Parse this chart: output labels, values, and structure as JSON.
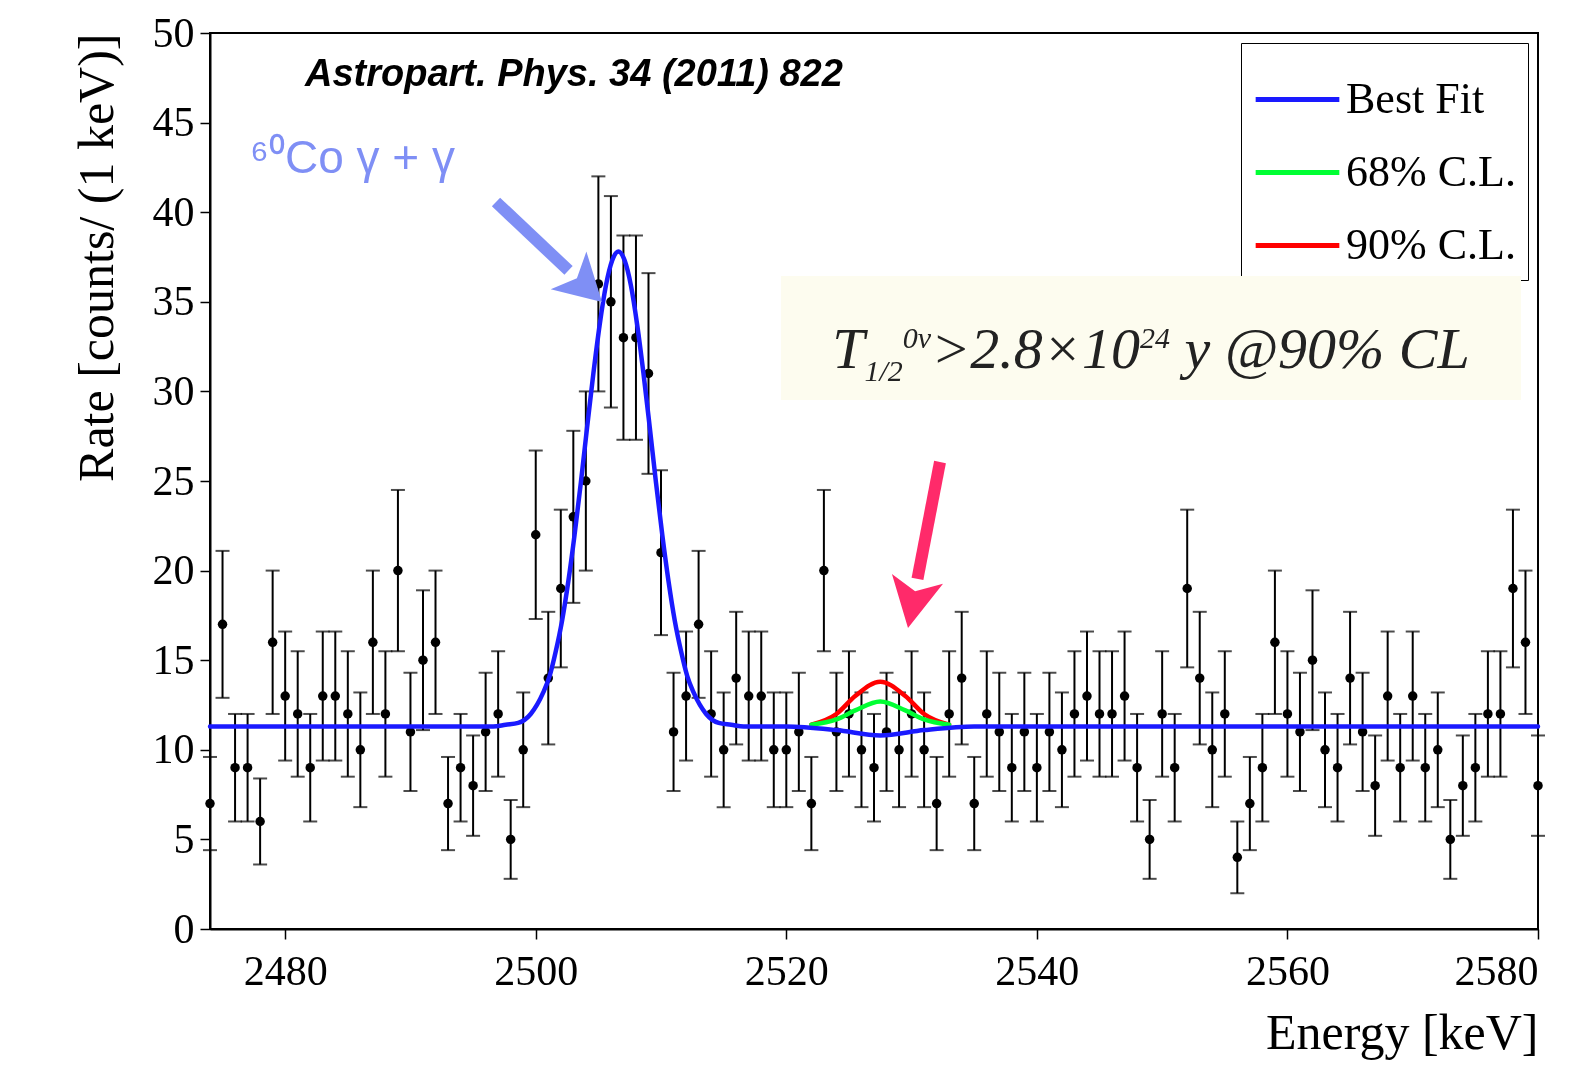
{
  "chart_data": {
    "type": "scatter",
    "xlabel": "Energy [keV]",
    "ylabel": "Rate [counts/ (1 keV)]",
    "xlim": [
      2474,
      2580
    ],
    "xticks": [
      2480,
      2500,
      2520,
      2540,
      2560,
      2580
    ],
    "ylim": [
      0,
      50
    ],
    "yticks": [
      0,
      5,
      10,
      15,
      20,
      25,
      30,
      35,
      40,
      45,
      50
    ],
    "legend": "top right",
    "annotations": [
      "Astropart. Phys. 34 (2011) 822",
      "⁶⁰Co γ + γ",
      "T$_{1/2}$$^{0ν}$>2.8×10$^{24}$ y  @90% CL"
    ],
    "series": [
      {
        "name": "Best Fit",
        "type": "line",
        "color": "#1a1aff",
        "x": [
          2474,
          2496.6,
          2497.6,
          2498.6,
          2499.6,
          2500.6,
          2501.1,
          2501.6,
          2502.1,
          2502.6,
          2503.1,
          2503.6,
          2504.1,
          2504.6,
          2505.1,
          2505.6,
          2506.1,
          2506.6,
          2507.1,
          2507.6,
          2508.1,
          2508.6,
          2509.1,
          2509.6,
          2510.1,
          2510.6,
          2511.1,
          2511.6,
          2512.1,
          2512.6,
          2513.6,
          2514.6,
          2515.6,
          2516.6,
          2520,
          2524,
          2527.5,
          2531,
          2535,
          2580
        ],
        "values": [
          11.3,
          11.3,
          11.4,
          11.5,
          12.0,
          13.2,
          14.1,
          15.5,
          17.2,
          19.4,
          22.0,
          24.9,
          28.0,
          31.0,
          33.7,
          35.9,
          37.3,
          37.8,
          37.3,
          35.9,
          33.7,
          31.0,
          28.0,
          24.9,
          22.0,
          19.4,
          17.2,
          15.5,
          14.1,
          13.2,
          12.0,
          11.5,
          11.4,
          11.3,
          11.3,
          11.1,
          10.8,
          11.1,
          11.3,
          11.3
        ]
      },
      {
        "name": "68% C.L.",
        "type": "line",
        "color": "#00ff33",
        "x": [
          2522,
          2524,
          2525.5,
          2527.5,
          2529.5,
          2531,
          2533
        ],
        "values": [
          11.4,
          11.7,
          12.2,
          12.7,
          12.2,
          11.7,
          11.4
        ]
      },
      {
        "name": "90% C.L.",
        "type": "line",
        "color": "#ff0000",
        "x": [
          2522,
          2524,
          2525.5,
          2527.5,
          2529.5,
          2531,
          2533
        ],
        "values": [
          11.4,
          12.0,
          13.0,
          13.8,
          13.0,
          12.0,
          11.4
        ]
      },
      {
        "marker": "circle",
        "color": "#000000",
        "x": [
          2474,
          2475,
          2476,
          2477,
          2478,
          2479,
          2480,
          2481,
          2482,
          2483,
          2484,
          2485,
          2486,
          2487,
          2488,
          2489,
          2490,
          2491,
          2492,
          2493,
          2494,
          2495,
          2496,
          2497,
          2498,
          2499,
          2500,
          2501,
          2502,
          2503,
          2504,
          2505,
          2506,
          2507,
          2508,
          2509,
          2510,
          2511,
          2512,
          2513,
          2514,
          2515,
          2516,
          2517,
          2518,
          2519,
          2520,
          2521,
          2522,
          2523,
          2524,
          2525,
          2526,
          2527,
          2528,
          2529,
          2530,
          2531,
          2532,
          2533,
          2534,
          2535,
          2536,
          2537,
          2538,
          2539,
          2540,
          2541,
          2542,
          2543,
          2544,
          2545,
          2546,
          2547,
          2548,
          2549,
          2550,
          2551,
          2552,
          2553,
          2554,
          2555,
          2556,
          2557,
          2558,
          2559,
          2560,
          2561,
          2562,
          2563,
          2564,
          2565,
          2566,
          2567,
          2568,
          2569,
          2570,
          2571,
          2572,
          2573,
          2574,
          2575,
          2576,
          2577,
          2578,
          2579,
          2580
        ],
        "values": [
          7,
          17,
          9,
          9,
          6,
          16,
          13,
          12,
          9,
          13,
          13,
          12,
          10,
          16,
          12,
          20,
          11,
          15,
          16,
          7,
          9,
          8,
          11,
          12,
          5,
          10,
          22,
          14,
          19,
          23,
          25,
          36,
          35,
          33,
          33,
          31,
          21,
          11,
          13,
          17,
          12,
          10,
          14,
          13,
          13,
          10,
          10,
          11,
          7,
          20,
          11,
          12,
          10,
          9,
          11,
          10,
          12,
          10,
          7,
          12,
          14,
          7,
          12,
          11,
          9,
          11,
          9,
          11,
          10,
          12,
          13,
          12,
          12,
          13,
          9,
          5,
          12,
          9,
          19,
          14,
          10,
          12,
          4,
          7,
          9,
          16,
          12,
          11,
          15,
          10,
          9,
          14,
          11,
          8,
          13,
          9,
          13,
          9,
          10,
          5,
          8,
          9,
          12,
          12,
          19,
          16,
          8
        ],
        "errors": [
          2.6,
          4.1,
          3.0,
          3.0,
          2.4,
          4.0,
          3.6,
          3.5,
          3.0,
          3.6,
          3.6,
          3.5,
          3.2,
          4.0,
          3.5,
          4.5,
          3.3,
          3.9,
          4.0,
          2.6,
          3.0,
          2.8,
          3.3,
          3.5,
          2.2,
          3.2,
          4.7,
          3.7,
          4.4,
          4.8,
          5.0,
          6.0,
          5.9,
          5.7,
          5.7,
          5.6,
          4.6,
          3.3,
          3.6,
          4.1,
          3.5,
          3.2,
          3.7,
          3.6,
          3.6,
          3.2,
          3.2,
          3.3,
          2.6,
          4.5,
          3.3,
          3.5,
          3.2,
          3.0,
          3.3,
          3.2,
          3.5,
          3.2,
          2.6,
          3.5,
          3.7,
          2.6,
          3.5,
          3.3,
          3.0,
          3.3,
          3.0,
          3.3,
          3.2,
          3.5,
          3.6,
          3.5,
          3.5,
          3.6,
          3.0,
          2.2,
          3.5,
          3.0,
          4.4,
          3.7,
          3.2,
          3.5,
          2.0,
          2.6,
          3.0,
          4.0,
          3.5,
          3.3,
          3.9,
          3.2,
          3.0,
          3.7,
          3.3,
          2.8,
          3.6,
          3.0,
          3.6,
          3.0,
          3.2,
          2.2,
          2.8,
          3.0,
          3.5,
          3.5,
          4.4,
          4.0,
          2.8
        ]
      }
    ]
  }
}
